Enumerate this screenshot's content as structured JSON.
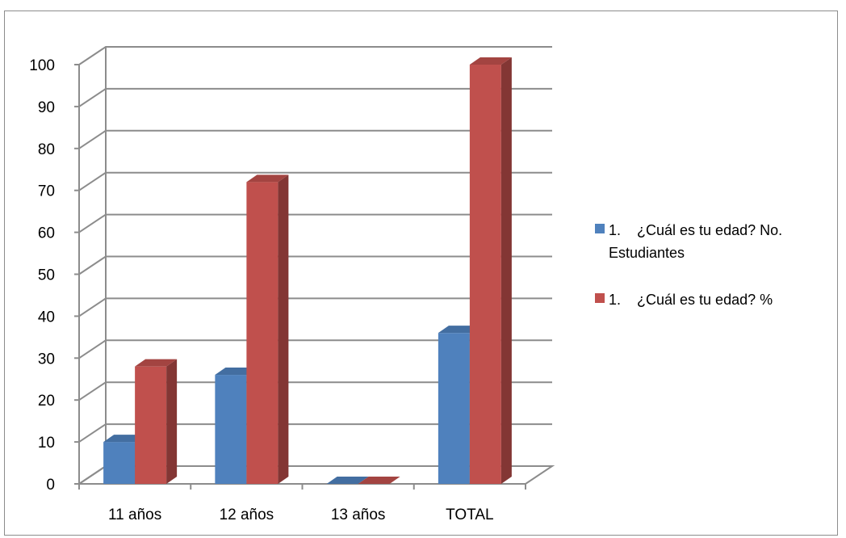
{
  "chart_data": {
    "type": "bar",
    "style": "3d-clustered-column",
    "categories": [
      "11 años",
      "12 años",
      "13 años",
      "TOTAL"
    ],
    "series": [
      {
        "name": "1.    ¿Cuál es tu edad? No. Estudiantes",
        "legend_lines": [
          "1.    ¿Cuál es tu edad? No.",
          "Estudiantes"
        ],
        "values": [
          10,
          26,
          0,
          36
        ],
        "color": "#4f81bd"
      },
      {
        "name": "1.    ¿Cuál es tu edad? %",
        "legend_lines": [
          "1.    ¿Cuál es tu edad? %"
        ],
        "values": [
          28,
          72,
          0,
          100
        ],
        "color": "#c0504d"
      }
    ],
    "y_ticks": [
      "0",
      "10",
      "20",
      "30",
      "40",
      "50",
      "60",
      "70",
      "80",
      "90",
      "100"
    ],
    "ylim": [
      0,
      100
    ],
    "grid": true,
    "legend_position": "right",
    "title": "",
    "xlabel": "",
    "ylabel": ""
  }
}
